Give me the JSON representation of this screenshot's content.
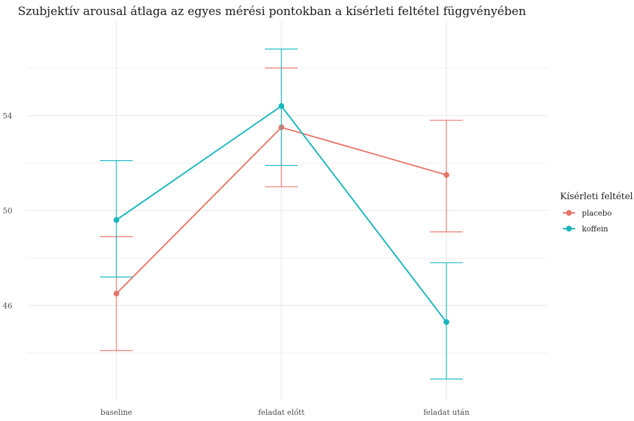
{
  "chart_data": {
    "type": "line",
    "title": "Szubjektív arousal átlaga az egyes mérési pontokban a kísérleti feltétel függvényében",
    "xlabel": "",
    "ylabel": "",
    "categories": [
      "baseline",
      "feladat előtt",
      "feladat után"
    ],
    "ylim": [
      42,
      58
    ],
    "yticks": [
      46,
      50,
      54
    ],
    "grid": true,
    "legend": {
      "title": "Kísérleti feltétel",
      "position": "right"
    },
    "series": [
      {
        "name": "placebo",
        "color": "#e8756a",
        "values": [
          46.5,
          53.5,
          51.5
        ],
        "error_lower": [
          44.1,
          51.0,
          49.1
        ],
        "error_upper": [
          48.9,
          56.0,
          53.8
        ]
      },
      {
        "name": "koffein",
        "color": "#17b6bd",
        "values": [
          49.6,
          54.4,
          45.3
        ],
        "error_lower": [
          47.2,
          51.9,
          42.9
        ],
        "error_upper": [
          52.1,
          56.8,
          47.8
        ]
      }
    ]
  }
}
